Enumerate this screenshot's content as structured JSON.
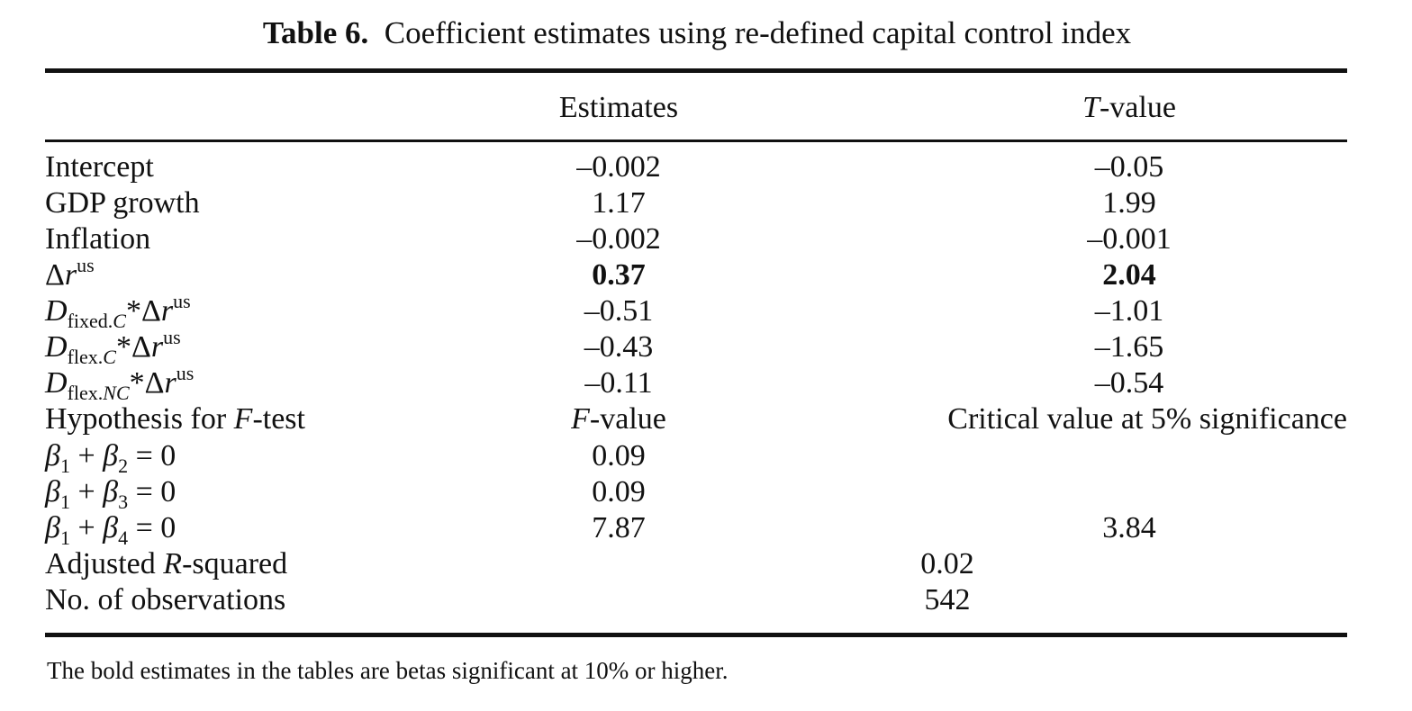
{
  "caption": {
    "label": "Table 6.",
    "text": "Coefficient estimates using re-defined capital control index"
  },
  "header": {
    "col1": "Estimates",
    "col2_italic": "T",
    "col2_rest": "-value"
  },
  "rows": [
    {
      "label": "Intercept",
      "est": "–0.002",
      "t": "–0.05"
    },
    {
      "label": "GDP growth",
      "est": "1.17",
      "t": "1.99"
    },
    {
      "label": "Inflation",
      "est": "–0.002",
      "t": "–0.001"
    },
    {
      "label_delta": "Δ",
      "label_r": "r",
      "label_sup": "us",
      "est": "0.37",
      "t": "2.04"
    },
    {
      "label_D": "D",
      "label_sub": "fixed.",
      "label_sub_it": "C",
      "label_mid": "*Δ",
      "label_r": "r",
      "label_sup": "us",
      "est": "–0.51",
      "t": "–1.01"
    },
    {
      "label_D": "D",
      "label_sub": "flex.",
      "label_sub_it": "C",
      "label_mid": "*Δ",
      "label_r": "r",
      "label_sup": "us",
      "est": "–0.43",
      "t": "–1.65"
    },
    {
      "label_D": "D",
      "label_sub": "flex.",
      "label_sub_it": "NC",
      "label_mid": "*Δ",
      "label_r": "r",
      "label_sup": "us",
      "est": "–0.11",
      "t": "–0.54"
    }
  ],
  "ftest_header": {
    "label_pre": "Hypothesis for ",
    "label_it": "F",
    "label_post": "-test",
    "col1_it": "F",
    "col1_rest": "-value",
    "col2": "Critical value at 5% significance"
  },
  "hypotheses": [
    {
      "b1": "β",
      "s1": "1",
      "op": " + ",
      "b2": "β",
      "s2": "2",
      "eq": " = 0",
      "f": "0.09",
      "crit": ""
    },
    {
      "b1": "β",
      "s1": "1",
      "op": " + ",
      "b2": "β",
      "s2": "3",
      "eq": " = 0",
      "f": "0.09",
      "crit": ""
    },
    {
      "b1": "β",
      "s1": "1",
      "op": " + ",
      "b2": "β",
      "s2": "4",
      "eq": " = 0",
      "f": "7.87",
      "crit": "3.84"
    }
  ],
  "stats": {
    "adj_label_pre": "Adjusted ",
    "adj_label_it": "R",
    "adj_label_post": "-squared",
    "adj_value": "0.02",
    "obs_label": "No. of observations",
    "obs_value": "542"
  },
  "footnote": "The bold estimates in the tables are betas significant at 10% or higher."
}
